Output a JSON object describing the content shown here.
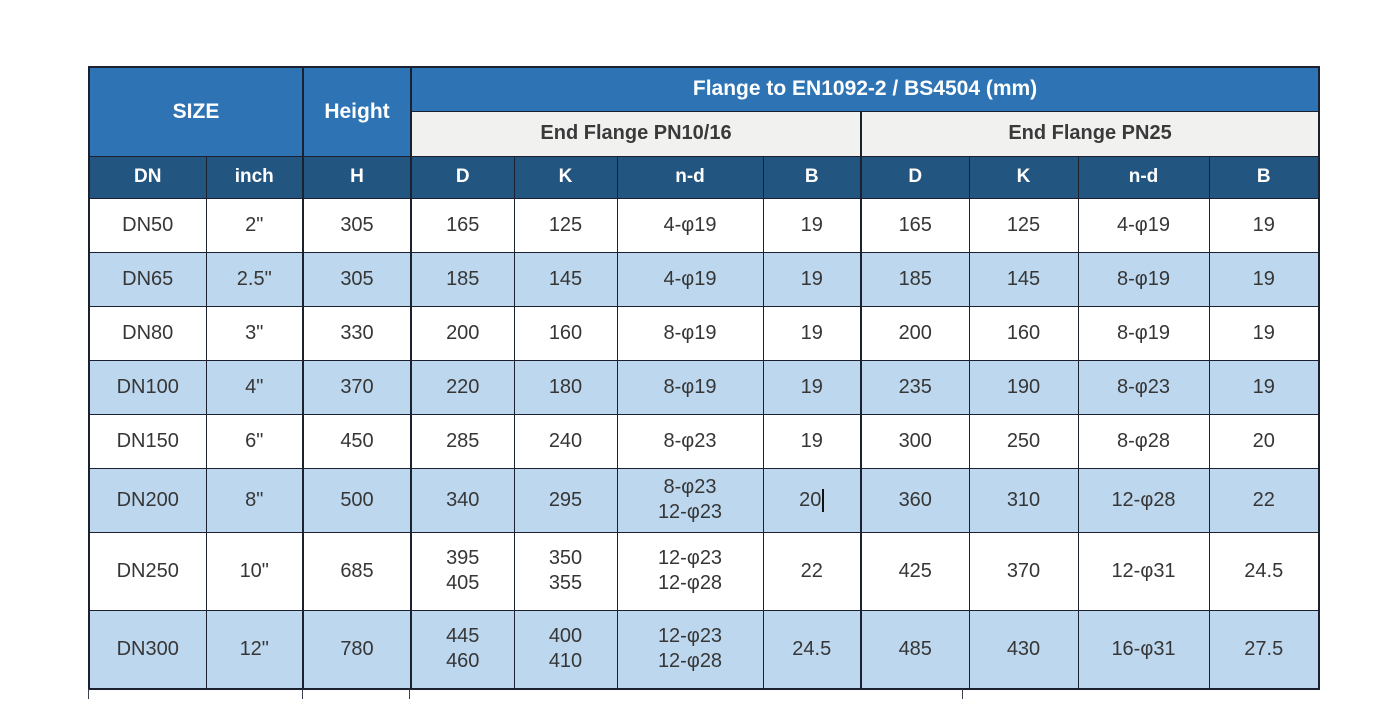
{
  "table": {
    "title": "Flange to EN1092-2 / BS4504 (mm)",
    "size_header": "SIZE",
    "height_header": "Height",
    "group1_header": "End Flange PN10/16",
    "group2_header": "End Flange PN25",
    "col_headers": [
      "DN",
      "inch",
      "H",
      "D",
      "K",
      "n-d",
      "B",
      "D",
      "K",
      "n-d",
      "B"
    ],
    "rows": [
      {
        "shaded": false,
        "caret_col": -1,
        "cells": [
          "DN50",
          "2\"",
          "305",
          "165",
          "125",
          "4-φ19",
          "19",
          "165",
          "125",
          "4-φ19",
          "19"
        ]
      },
      {
        "shaded": true,
        "caret_col": -1,
        "cells": [
          "DN65",
          "2.5\"",
          "305",
          "185",
          "145",
          "4-φ19",
          "19",
          "185",
          "145",
          "8-φ19",
          "19"
        ]
      },
      {
        "shaded": false,
        "caret_col": -1,
        "cells": [
          "DN80",
          "3\"",
          "330",
          "200",
          "160",
          "8-φ19",
          "19",
          "200",
          "160",
          "8-φ19",
          "19"
        ]
      },
      {
        "shaded": true,
        "caret_col": -1,
        "cells": [
          "DN100",
          "4\"",
          "370",
          "220",
          "180",
          "8-φ19",
          "19",
          "235",
          "190",
          "8-φ23",
          "19"
        ]
      },
      {
        "shaded": false,
        "caret_col": -1,
        "cells": [
          "DN150",
          "6\"",
          "450",
          "285",
          "240",
          "8-φ23",
          "19",
          "300",
          "250",
          "8-φ28",
          "20"
        ]
      },
      {
        "shaded": true,
        "caret_col": 6,
        "cells": [
          "DN200",
          "8\"",
          "500",
          "340",
          "295",
          "8-φ23\n12-φ23",
          "20",
          "360",
          "310",
          "12-φ28",
          "22"
        ]
      },
      {
        "shaded": false,
        "caret_col": -1,
        "cells": [
          "DN250",
          "10\"",
          "685",
          "395\n405",
          "350\n355",
          "12-φ23\n12-φ28",
          "22",
          "425",
          "370",
          "12-φ31",
          "24.5"
        ]
      },
      {
        "shaded": true,
        "caret_col": -1,
        "cells": [
          "DN300",
          "12\"",
          "780",
          "445\n460",
          "400\n410",
          "12-φ23\n12-φ28",
          "24.5",
          "485",
          "430",
          "16-φ31",
          "27.5"
        ]
      }
    ]
  },
  "colors": {
    "header_blue": "#2e74b5",
    "header_navy": "#235581",
    "subheader_gray": "#f1f1f0",
    "row_shade_blue": "#bdd7ee",
    "border": "#1c2130",
    "data_text": "#363636",
    "header_text": "#ffffff"
  }
}
